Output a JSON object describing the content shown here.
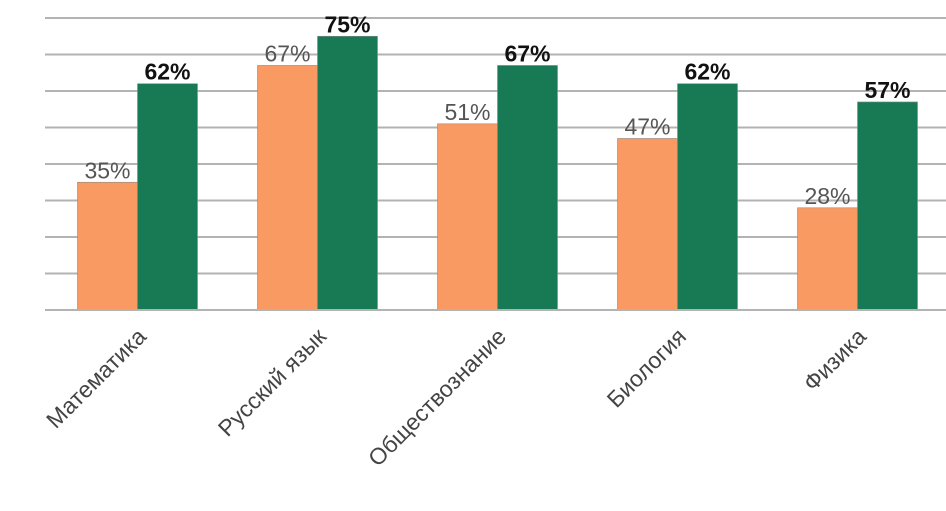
{
  "chart_data": {
    "type": "bar",
    "categories": [
      "Математика",
      "Русский язык",
      "Обществознание",
      "Биология",
      "Физика"
    ],
    "series": [
      {
        "values": [
          35,
          67,
          51,
          47,
          28
        ],
        "color": "#FA9A63",
        "label_style": "regular"
      },
      {
        "values": [
          62,
          75,
          67,
          62,
          57
        ],
        "color": "#177A55",
        "label_style": "bold"
      }
    ],
    "value_suffix": "%",
    "ylim": [
      0,
      80
    ],
    "gridlines": [
      10,
      20,
      30,
      40,
      50,
      60,
      70,
      80
    ],
    "grid": true,
    "legend": "none",
    "tick_label_rotation": "-45"
  }
}
